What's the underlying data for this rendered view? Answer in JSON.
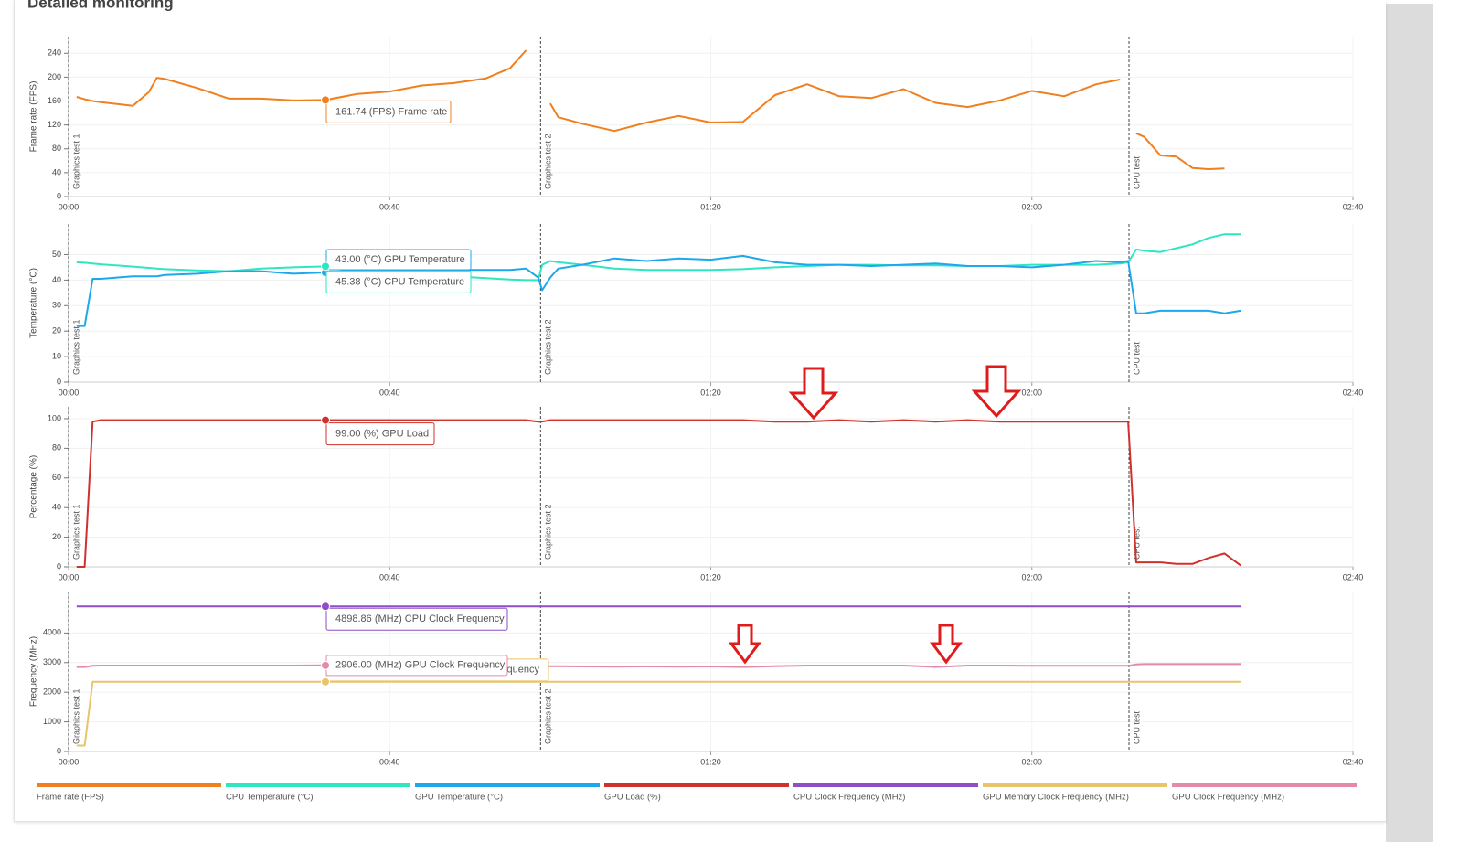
{
  "title": "Detailed monitoring",
  "chart_data": [
    {
      "type": "line",
      "ylabel": "Frame rate (FPS)",
      "xlim": [
        0,
        160
      ],
      "ylim": [
        0,
        268
      ],
      "xticks": [
        {
          "value": 0,
          "label": "00:00"
        },
        {
          "value": 40,
          "label": "00:40"
        },
        {
          "value": 80,
          "label": "01:20"
        },
        {
          "value": 120,
          "label": "02:00"
        },
        {
          "value": 160,
          "label": "02:40"
        }
      ],
      "yticks": [
        0,
        40,
        80,
        120,
        160,
        200,
        240
      ],
      "grid": true,
      "markers": [
        {
          "x": 0,
          "label": "Graphics test 1"
        },
        {
          "x": 58.8,
          "label": "Graphics test 2"
        },
        {
          "x": 132.1,
          "label": "CPU test"
        }
      ],
      "x": [
        0,
        1,
        2,
        3,
        4,
        8,
        10,
        11,
        12,
        16,
        20,
        24,
        28,
        32,
        36,
        40,
        44,
        48,
        52,
        55,
        57,
        58.5,
        59,
        60,
        61,
        64,
        68,
        72,
        76,
        80,
        84,
        88,
        92,
        96,
        100,
        104,
        108,
        112,
        116,
        120,
        124,
        128,
        131,
        132,
        133,
        134,
        136,
        138,
        140,
        142,
        144,
        146
      ],
      "series": [
        {
          "name": "Frame rate (FPS)",
          "color": "#f07f1f",
          "values": [
            null,
            167,
            163,
            160,
            158,
            152,
            175,
            199,
            197,
            182,
            164,
            164,
            161,
            161.74,
            172,
            176,
            186,
            190,
            198,
            215,
            245,
            null,
            null,
            156,
            133,
            122,
            110,
            124,
            135,
            124,
            125,
            170,
            188,
            168,
            165,
            180,
            157,
            150,
            161,
            177,
            168,
            188,
            196,
            null,
            106,
            100,
            69,
            67,
            48,
            46,
            47,
            null
          ]
        }
      ],
      "tooltips": [
        {
          "x": 32,
          "y": 161.74,
          "text": "161.74 (FPS) Frame rate",
          "color": "#f07f1f"
        }
      ]
    },
    {
      "type": "line",
      "ylabel": "Temperature (°C)",
      "xlim": [
        0,
        160
      ],
      "ylim": [
        0,
        62
      ],
      "xticks": [
        {
          "value": 0,
          "label": "00:00"
        },
        {
          "value": 40,
          "label": "00:40"
        },
        {
          "value": 80,
          "label": "01:20"
        },
        {
          "value": 120,
          "label": "02:00"
        },
        {
          "value": 160,
          "label": "02:40"
        }
      ],
      "yticks": [
        0,
        10,
        20,
        30,
        40,
        50
      ],
      "grid": true,
      "markers": [
        {
          "x": 0,
          "label": "Graphics test 1"
        },
        {
          "x": 58.8,
          "label": "Graphics test 2"
        },
        {
          "x": 132.1,
          "label": "CPU test"
        }
      ],
      "x": [
        0,
        1,
        2,
        3,
        4,
        8,
        10,
        11,
        12,
        16,
        20,
        24,
        28,
        32,
        36,
        40,
        44,
        48,
        52,
        55,
        57,
        58.5,
        59,
        60,
        61,
        64,
        68,
        72,
        76,
        80,
        84,
        88,
        92,
        96,
        100,
        104,
        108,
        112,
        116,
        120,
        124,
        128,
        131,
        132,
        133,
        134,
        136,
        138,
        140,
        142,
        144,
        146
      ],
      "series": [
        {
          "name": "CPU Temperature (°C)",
          "color": "#2ee6bf",
          "values": [
            null,
            47,
            46.8,
            46.5,
            46.2,
            45.3,
            44.8,
            44.5,
            44.3,
            43.8,
            43.5,
            44.5,
            45,
            45.38,
            45,
            44.5,
            43,
            41.5,
            40.8,
            40.2,
            40,
            40,
            46,
            47.5,
            47,
            46,
            44.5,
            44,
            44,
            44,
            44.3,
            45,
            45.5,
            46,
            46,
            45.8,
            45.8,
            45.5,
            45.5,
            46,
            46,
            46,
            46.5,
            47,
            52,
            51.5,
            51,
            52.5,
            54,
            56.5,
            58,
            58
          ]
        },
        {
          "name": "GPU Temperature (°C)",
          "color": "#1ea8ec",
          "values": [
            null,
            22,
            22,
            40.5,
            40.5,
            41.5,
            41.5,
            41.5,
            42,
            42.5,
            43.5,
            43.5,
            42.5,
            43,
            44,
            44,
            44,
            44,
            44,
            44,
            44.5,
            41,
            36,
            41,
            44.5,
            46,
            48.5,
            47.5,
            48.5,
            48,
            49.5,
            47,
            46,
            46,
            45.5,
            46,
            46.5,
            45.5,
            45.5,
            45,
            46,
            47.5,
            47,
            47.5,
            27,
            27,
            28,
            28,
            28,
            28,
            27,
            28
          ]
        }
      ],
      "tooltips": [
        {
          "x": 32,
          "y": 43,
          "text": "43.00 (°C) GPU Temperature",
          "color": "#1ea8ec"
        },
        {
          "x": 32,
          "y": 45.38,
          "text": "45.38 (°C) CPU Temperature",
          "color": "#2ee6bf"
        }
      ]
    },
    {
      "type": "line",
      "ylabel": "Percentage (%)",
      "xlim": [
        0,
        160
      ],
      "ylim": [
        0,
        108
      ],
      "xticks": [
        {
          "value": 0,
          "label": "00:00"
        },
        {
          "value": 40,
          "label": "00:40"
        },
        {
          "value": 80,
          "label": "01:20"
        },
        {
          "value": 120,
          "label": "02:00"
        },
        {
          "value": 160,
          "label": "02:40"
        }
      ],
      "yticks": [
        0,
        20,
        40,
        60,
        80,
        100
      ],
      "grid": true,
      "markers": [
        {
          "x": 0,
          "label": "Graphics test 1"
        },
        {
          "x": 58.8,
          "label": "Graphics test 2"
        },
        {
          "x": 132.1,
          "label": "CPU test"
        }
      ],
      "x": [
        0,
        1,
        2,
        3,
        4,
        8,
        10,
        11,
        12,
        16,
        20,
        24,
        28,
        32,
        36,
        40,
        44,
        48,
        52,
        55,
        57,
        58.5,
        59,
        60,
        61,
        64,
        68,
        72,
        76,
        80,
        84,
        88,
        92,
        96,
        100,
        104,
        108,
        112,
        116,
        120,
        124,
        128,
        131,
        132,
        133,
        134,
        136,
        138,
        140,
        142,
        144,
        146
      ],
      "series": [
        {
          "name": "GPU Load (%)",
          "color": "#d0312d",
          "values": [
            null,
            0,
            0,
            98,
            99,
            99,
            99,
            99,
            99,
            99,
            99,
            99,
            99,
            99,
            99,
            99,
            99,
            99,
            99,
            99,
            99,
            98,
            98,
            99,
            99,
            99,
            99,
            99,
            99,
            99,
            99,
            98,
            98,
            99,
            98,
            99,
            98,
            99,
            98,
            98,
            98,
            98,
            98,
            98,
            3,
            3,
            3,
            2,
            2,
            6,
            9,
            1
          ]
        }
      ],
      "tooltips": [
        {
          "x": 32,
          "y": 99,
          "text": "99.00 (%) GPU Load",
          "color": "#d0312d"
        }
      ]
    },
    {
      "type": "line",
      "ylabel": "Frequency (MHz)",
      "xlim": [
        0,
        160
      ],
      "ylim": [
        0,
        5400
      ],
      "xticks": [
        {
          "value": 0,
          "label": "00:00"
        },
        {
          "value": 40,
          "label": "00:40"
        },
        {
          "value": 80,
          "label": "01:20"
        },
        {
          "value": 120,
          "label": "02:00"
        },
        {
          "value": 160,
          "label": "02:40"
        }
      ],
      "yticks": [
        0,
        1000,
        2000,
        3000,
        4000
      ],
      "grid": true,
      "markers": [
        {
          "x": 0,
          "label": "Graphics test 1"
        },
        {
          "x": 58.8,
          "label": "Graphics test 2"
        },
        {
          "x": 132.1,
          "label": "CPU test"
        }
      ],
      "x": [
        0,
        1,
        2,
        3,
        4,
        8,
        10,
        11,
        12,
        16,
        20,
        24,
        28,
        32,
        36,
        40,
        44,
        48,
        52,
        55,
        57,
        58.5,
        59,
        60,
        61,
        64,
        68,
        72,
        76,
        80,
        84,
        88,
        92,
        96,
        100,
        104,
        108,
        112,
        116,
        120,
        124,
        128,
        131,
        132,
        133,
        134,
        136,
        138,
        140,
        142,
        144,
        146
      ],
      "series": [
        {
          "name": "CPU Clock Frequency (MHz)",
          "color": "#8e4ec6",
          "values": [
            null,
            4898.86,
            4898.86,
            4898.86,
            4898.86,
            4898.86,
            4898.86,
            4898.86,
            4898.86,
            4898.86,
            4898.86,
            4898.86,
            4898.86,
            4898.86,
            4898.86,
            4898.86,
            4898.86,
            4898.86,
            4898.86,
            4898.86,
            4898.86,
            4898.86,
            4898.86,
            4898.86,
            4898.86,
            4898.86,
            4898.86,
            4898.86,
            4898.86,
            4898.86,
            4898.86,
            4898.86,
            4898.86,
            4898.86,
            4898.86,
            4898.86,
            4898.86,
            4898.86,
            4898.86,
            4898.86,
            4898.86,
            4898.86,
            4898.86,
            4898.86,
            4898.86,
            4898.86,
            4898.86,
            4898.86,
            4898.86,
            4898.86,
            4898.86,
            4898.86
          ]
        },
        {
          "name": "GPU Memory Clock Frequency (MHz)",
          "color": "#e9c46a",
          "values": [
            null,
            200,
            200,
            2350,
            2350,
            2350,
            2350,
            2350,
            2350,
            2350,
            2350,
            2350,
            2350,
            2350,
            2350,
            2350,
            2350,
            2350,
            2350,
            2350,
            2350,
            2350,
            2350,
            2350,
            2350,
            2350,
            2350,
            2350,
            2350,
            2350,
            2350,
            2350,
            2350,
            2350,
            2350,
            2350,
            2350,
            2350,
            2350,
            2350,
            2350,
            2350,
            2350,
            2350,
            2350,
            2350,
            2350,
            2350,
            2350,
            2350,
            2350,
            2350
          ]
        },
        {
          "name": "GPU Clock Frequency (MHz)",
          "color": "#e68aac",
          "values": [
            null,
            2850,
            2850,
            2890,
            2900,
            2900,
            2900,
            2900,
            2900,
            2900,
            2900,
            2900,
            2900,
            2906,
            2900,
            2900,
            2900,
            2900,
            2900,
            2900,
            2900,
            2900,
            2900,
            2880,
            2880,
            2870,
            2860,
            2870,
            2860,
            2870,
            2850,
            2880,
            2900,
            2900,
            2900,
            2900,
            2850,
            2900,
            2900,
            2890,
            2890,
            2890,
            2890,
            2890,
            2940,
            2950,
            2950,
            2950,
            2950,
            2950,
            2950,
            2950
          ]
        }
      ],
      "tooltips": [
        {
          "x": 32,
          "y": 4898.86,
          "text": "4898.86 (MHz) CPU Clock Frequency",
          "color": "#8e4ec6"
        },
        {
          "x": 32,
          "y": 2350,
          "text": "quency",
          "color": "#e9c46a"
        },
        {
          "x": 32,
          "y": 2906,
          "text": "2906.00 (MHz) GPU Clock Frequency",
          "color": "#e68aac"
        }
      ]
    }
  ]
}
